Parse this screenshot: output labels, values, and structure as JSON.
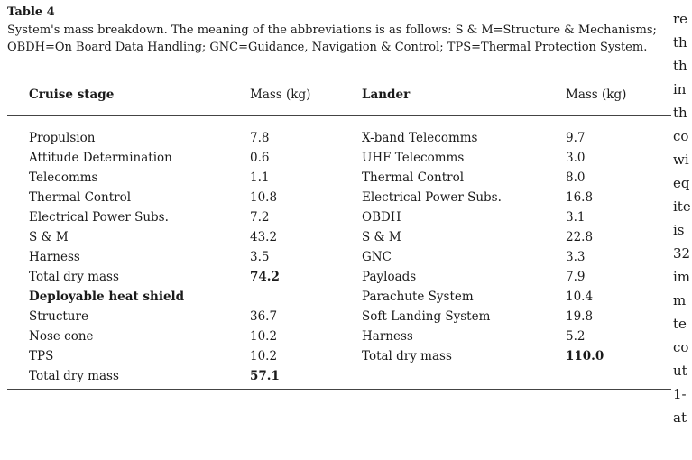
{
  "table": {
    "label": "Table 4",
    "caption": "System's mass breakdown. The meaning of the abbreviations is as follows: S & M=Structure & Mechanisms; OBDH=On Board Data Handling; GNC=Guidance, Navigation & Control; TPS=Thermal Protection System.",
    "headers": [
      "Cruise stage",
      "Mass (kg)",
      "Lander",
      "Mass (kg)"
    ],
    "rows": [
      [
        "Propulsion",
        "7.8",
        "X-band Telecomms",
        "9.7"
      ],
      [
        "Attitude Determination",
        "0.6",
        "UHF Telecomms",
        "3.0"
      ],
      [
        "Telecomms",
        "1.1",
        "Thermal Control",
        "8.0"
      ],
      [
        "Thermal Control",
        "10.8",
        "Electrical Power Subs.",
        "16.8"
      ],
      [
        "Electrical Power Subs.",
        "7.2",
        "OBDH",
        "3.1"
      ],
      [
        "S & M",
        "43.2",
        "S & M",
        "22.8"
      ],
      [
        "Harness",
        "3.5",
        "GNC",
        "3.3"
      ],
      [
        "Total dry mass",
        "74.2",
        "Payloads",
        "7.9"
      ],
      [
        "Deployable heat shield",
        "",
        "Parachute System",
        "10.4"
      ],
      [
        "Structure",
        "36.7",
        "Soft Landing System",
        "19.8"
      ],
      [
        "Nose cone",
        "10.2",
        "Harness",
        "5.2"
      ],
      [
        "TPS",
        "10.2",
        "Total dry mass",
        "110.0"
      ],
      [
        "Total dry mass",
        "57.1",
        "",
        ""
      ]
    ]
  },
  "side_text": [
    "re",
    "th",
    "th",
    "in",
    "th",
    "co",
    "wi",
    "eq",
    "ite",
    "is",
    "32",
    "im",
    "m",
    "te",
    "co",
    "ut",
    "1-",
    "at"
  ]
}
